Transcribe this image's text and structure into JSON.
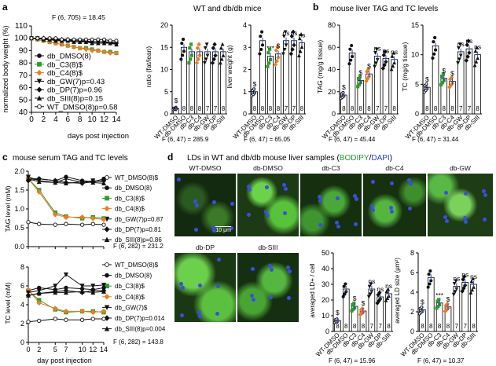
{
  "panel_a": {
    "letter": "a",
    "title": "WT and db/db mice",
    "stat": "F (6, 705) = 18.45",
    "xlabel": "days post injection",
    "ylabel": "normalized body weight (%)",
    "legend": [
      {
        "label": "db_DMSO(8)",
        "marker": "circle-filled",
        "color": "#111111"
      },
      {
        "label": "db_C3(8)$",
        "marker": "square-filled",
        "color": "#2e9b2e"
      },
      {
        "label": "db_C4(8)$",
        "marker": "diamond-filled",
        "color": "#f07b22"
      },
      {
        "label": "db_GW(7)p=0.43",
        "marker": "triangle-down",
        "color": "#111111"
      },
      {
        "label": "db_DP(7)p=0.96",
        "marker": "diamond-filled",
        "color": "#111111"
      },
      {
        "label": "db_SIII(8)p=0.15",
        "marker": "triangle-up",
        "color": "#111111"
      },
      {
        "label": "WT_DMSO(8)p=0.58",
        "marker": "circle-open",
        "color": "#111111"
      }
    ]
  },
  "panel_a_ratio": {
    "ylabel": "ratio (fat/lean)",
    "stat": "F (6, 47) = 285.9"
  },
  "panel_a_liver": {
    "ylabel": "liver weight (g)",
    "stat": "F (6, 47) = 65.05"
  },
  "panel_b": {
    "letter": "b",
    "title": "mouse liver TAG and TC levels",
    "tag_ylabel": "TAG (mg/g tissue)",
    "tag_stat": "F (6, 47) = 45.44",
    "tc_ylabel": "TC (mg/g tissue)",
    "tc_stat": "F (6, 47) = 31.44"
  },
  "panel_c": {
    "letter": "c",
    "title": "mouse serum TAG and TC levels",
    "tag_ylabel": "TAG level (mM)",
    "tc_ylabel": "TC level (mM)",
    "xlabel": "day post injection",
    "tag_legend": [
      "WT_DMSO(8)$",
      "db_DMSO(8)",
      "db_C3(8)$",
      "db_C4(8)$",
      "db_GW(7)p=0.87",
      "db_DP(7)p=0.81",
      "db_SIII(8)p=0.86"
    ],
    "tag_stat": "F (6, 282) = 231.2",
    "tc_legend": [
      "WT_DMSO(8)$",
      "db_DMSO(8)",
      "db_C3(8)$",
      "db_C4(8)$",
      "db_GW(7)$",
      "db_DP(7)p=0.014",
      "db_SIII(8)p=0.004"
    ],
    "tc_stat": "F (6, 282) = 143.8"
  },
  "panel_d": {
    "letter": "d",
    "title_pre": "LDs in WT and db/db mouse liver samples (",
    "title_bodipy": "BODIPY",
    "title_sep": "/",
    "title_dapi": "DAPI",
    "title_post": ")",
    "images": [
      "WT-DMSO",
      "db-DMSO",
      "db-C3",
      "db-C4",
      "db-GW",
      "db-DP",
      "db-SIII"
    ],
    "scale_bar": "10 μm",
    "count_ylabel": "averaged LD+ / cell",
    "count_stat": "F (6, 47) = 15.96",
    "size_ylabel": "averaged LD size (μm²)",
    "size_stat": "F (6, 47) = 10.37"
  },
  "group_labels": [
    "WT-DMSO",
    "db-DMSO",
    "db-C3",
    "db-C4",
    "db-GW",
    "db-DP",
    "db-SIII"
  ],
  "chart_data": [
    {
      "type": "line",
      "id": "body_weight",
      "title": "WT and db/db mice",
      "xlabel": "days post injection",
      "ylabel": "normalized body weight (%)",
      "xlim": [
        0,
        14
      ],
      "ylim": [
        40,
        110
      ],
      "x": [
        0,
        1,
        2,
        3,
        4,
        5,
        6,
        7,
        8,
        9,
        10,
        11,
        12,
        13,
        14
      ],
      "series": [
        {
          "name": "db_DMSO(8)",
          "values": [
            100,
            100,
            100,
            99,
            99,
            99,
            98,
            98,
            98,
            98,
            97,
            97,
            97,
            97,
            96
          ]
        },
        {
          "name": "db_C3(8)$",
          "values": [
            100,
            99,
            98,
            97,
            96,
            95,
            94,
            93,
            92,
            92,
            91,
            90,
            89,
            89,
            88
          ]
        },
        {
          "name": "db_C4(8)$",
          "values": [
            100,
            99,
            98,
            97,
            96,
            95,
            94,
            93,
            92,
            91,
            90,
            90,
            89,
            88,
            88
          ]
        },
        {
          "name": "db_GW(7)p=0.43",
          "values": [
            100,
            100,
            99,
            99,
            99,
            98,
            98,
            98,
            98,
            97,
            97,
            97,
            97,
            96,
            96
          ]
        },
        {
          "name": "db_DP(7)p=0.96",
          "values": [
            100,
            100,
            100,
            99,
            99,
            99,
            99,
            98,
            98,
            98,
            97,
            97,
            97,
            97,
            96
          ]
        },
        {
          "name": "db_SIII(8)p=0.15",
          "values": [
            100,
            100,
            99,
            99,
            98,
            98,
            98,
            97,
            97,
            97,
            96,
            96,
            96,
            96,
            95
          ]
        },
        {
          "name": "WT_DMSO(8)p=0.58",
          "values": [
            100,
            100,
            100,
            100,
            100,
            99,
            99,
            99,
            99,
            99,
            99,
            99,
            99,
            98,
            98
          ]
        }
      ]
    },
    {
      "type": "bar",
      "id": "ratio",
      "ylabel": "ratio (fat/lean)",
      "ylim": [
        0,
        20
      ],
      "yticks": [
        0,
        5,
        10,
        15,
        20
      ],
      "categories": [
        "WT-DMSO",
        "db-DMSO",
        "db-C3",
        "db-C4",
        "db-GW",
        "db-DP",
        "db-SIII"
      ],
      "values": [
        1.2,
        15,
        14,
        14,
        14,
        14,
        14
      ],
      "n": [
        8,
        8,
        8,
        8,
        7,
        7,
        8
      ],
      "annotations": [
        "$",
        "",
        "",
        "",
        "",
        "",
        ""
      ],
      "stat": "F (6, 47) = 285.9"
    },
    {
      "type": "bar",
      "id": "liver",
      "ylabel": "liver weight (g)",
      "ylim": [
        0,
        4
      ],
      "yticks": [
        0,
        1,
        2,
        3,
        4
      ],
      "categories": [
        "WT-DMSO",
        "db-DMSO",
        "db-C3",
        "db-C4",
        "db-GW",
        "db-DP",
        "db-SIII"
      ],
      "values": [
        1.0,
        3.3,
        2.6,
        2.7,
        3.3,
        3.3,
        3.2
      ],
      "n": [
        8,
        8,
        8,
        8,
        7,
        7,
        8
      ],
      "annotations": [
        "$",
        "",
        "***",
        "$",
        "ns",
        "ns",
        "ns"
      ],
      "stat": "F (6, 47) = 65.05"
    },
    {
      "type": "bar",
      "id": "liver_tag",
      "ylabel": "TAG (mg/g tissue)",
      "ylim": [
        0,
        80
      ],
      "yticks": [
        0,
        20,
        40,
        60,
        80
      ],
      "categories": [
        "WT-DMSO",
        "db-DMSO",
        "db-C3",
        "db-C4",
        "db-GW",
        "db-DP",
        "db-SIII"
      ],
      "values": [
        17,
        55,
        30,
        36,
        52,
        50,
        49
      ],
      "n": [
        8,
        8,
        8,
        8,
        7,
        7,
        8
      ],
      "annotations": [
        "$",
        "",
        "$",
        "$",
        "ns",
        "ns",
        "ns"
      ],
      "stat": "F (6, 47) = 45.44"
    },
    {
      "type": "bar",
      "id": "liver_tc",
      "ylabel": "TC (mg/g tissue)",
      "ylim": [
        0,
        15
      ],
      "yticks": [
        0,
        5,
        10,
        15
      ],
      "categories": [
        "WT-DMSO",
        "db-DMSO",
        "db-C3",
        "db-C4",
        "db-GW",
        "db-DP",
        "db-SIII"
      ],
      "values": [
        4.5,
        11.5,
        6,
        5.5,
        10.5,
        11,
        10
      ],
      "n": [
        8,
        8,
        8,
        8,
        7,
        7,
        8
      ],
      "annotations": [
        "$",
        "",
        "$",
        "$",
        "ns",
        "ns",
        "ns"
      ],
      "stat": "F (6, 47) = 31.44"
    },
    {
      "type": "line",
      "id": "serum_tag",
      "ylabel": "TAG level (mM)",
      "xlabel": "day post injection",
      "ylim": [
        0,
        2.0
      ],
      "yticks": [
        0,
        0.5,
        1.0,
        1.5,
        2.0
      ],
      "x": [
        0,
        2,
        5,
        7,
        10,
        12,
        14
      ],
      "series": [
        {
          "name": "WT_DMSO(8)$",
          "values": [
            0.65,
            0.6,
            0.58,
            0.6,
            0.58,
            0.6,
            0.58
          ]
        },
        {
          "name": "db_DMSO(8)",
          "values": [
            1.8,
            1.8,
            1.75,
            1.85,
            1.75,
            1.72,
            1.8
          ]
        },
        {
          "name": "db_C3(8)$",
          "values": [
            1.8,
            1.5,
            0.9,
            0.8,
            0.75,
            0.78,
            0.75
          ]
        },
        {
          "name": "db_C4(8)$",
          "values": [
            1.8,
            1.45,
            0.85,
            0.78,
            0.78,
            0.75,
            0.72
          ]
        },
        {
          "name": "db_GW(7)p=0.87",
          "values": [
            1.85,
            1.75,
            1.7,
            1.8,
            1.7,
            1.75,
            1.72
          ]
        },
        {
          "name": "db_DP(7)p=0.81",
          "values": [
            1.75,
            1.8,
            1.75,
            1.7,
            1.68,
            1.72,
            1.75
          ]
        },
        {
          "name": "db_SIII(8)p=0.86",
          "values": [
            1.8,
            1.72,
            1.7,
            1.68,
            1.72,
            1.7,
            1.68
          ]
        }
      ]
    },
    {
      "type": "line",
      "id": "serum_tc",
      "ylabel": "TC level (mM)",
      "xlabel": "day post injection",
      "xticks": [
        0,
        2,
        5,
        7,
        10,
        12,
        14
      ],
      "ylim": [
        0,
        8
      ],
      "yticks": [
        0,
        2,
        4,
        6,
        8
      ],
      "x": [
        0,
        2,
        5,
        7,
        10,
        12,
        14
      ],
      "series": [
        {
          "name": "WT_DMSO(8)$",
          "values": [
            2.2,
            2.3,
            2.5,
            2.4,
            2.4,
            2.5,
            2.5
          ]
        },
        {
          "name": "db_DMSO(8)",
          "values": [
            5.5,
            5.8,
            5.6,
            5.8,
            5.7,
            5.6,
            5.8
          ]
        },
        {
          "name": "db_C3(8)$",
          "values": [
            5.5,
            4.5,
            3.5,
            3.2,
            3.3,
            3.3,
            3.2
          ]
        },
        {
          "name": "db_C4(8)$",
          "values": [
            5.6,
            4.2,
            3.6,
            3.3,
            3.3,
            3.2,
            3.3
          ]
        },
        {
          "name": "db_GW(7)$",
          "values": [
            5.3,
            5.5,
            6.0,
            7.2,
            6.0,
            6.0,
            6.1
          ]
        },
        {
          "name": "db_DP(7)p=0.014",
          "values": [
            5.0,
            5.2,
            5.4,
            5.5,
            5.3,
            5.5,
            5.5
          ]
        },
        {
          "name": "db_SIII(8)p=0.004",
          "values": [
            5.0,
            5.2,
            5.3,
            5.3,
            5.4,
            5.3,
            5.4
          ]
        }
      ]
    },
    {
      "type": "bar",
      "id": "ld_count",
      "ylabel": "averaged LD+ / cell",
      "ylim": [
        0,
        50
      ],
      "yticks": [
        0,
        10,
        20,
        30,
        40,
        50
      ],
      "categories": [
        "WT-DMSO",
        "db-DMSO",
        "db-C3",
        "db-C4",
        "db-GW",
        "db-DP",
        "db-SIII"
      ],
      "values": [
        7,
        27,
        16,
        13,
        27,
        22,
        24
      ],
      "n": [
        8,
        8,
        8,
        8,
        7,
        7,
        8
      ],
      "annotations": [
        "$",
        "",
        "$",
        "$",
        "ns",
        "ns",
        "ns"
      ],
      "stat": "F (6, 47) = 15.96"
    },
    {
      "type": "bar",
      "id": "ld_size",
      "ylabel": "averaged LD size (μm²)",
      "ylim": [
        0,
        8
      ],
      "yticks": [
        0,
        2,
        4,
        6,
        8
      ],
      "categories": [
        "WT-DMSO",
        "db-DMSO",
        "db-C3",
        "db-C4",
        "db-GW",
        "db-DP",
        "db-SIII"
      ],
      "values": [
        2.2,
        5.5,
        2.9,
        2.5,
        4.6,
        5.0,
        4.8
      ],
      "n": [
        8,
        8,
        8,
        8,
        7,
        7,
        8
      ],
      "annotations": [
        "$",
        "",
        "***",
        "$",
        "ns",
        "ns",
        "ns"
      ],
      "stat": "F (6, 47) = 10.37"
    }
  ]
}
